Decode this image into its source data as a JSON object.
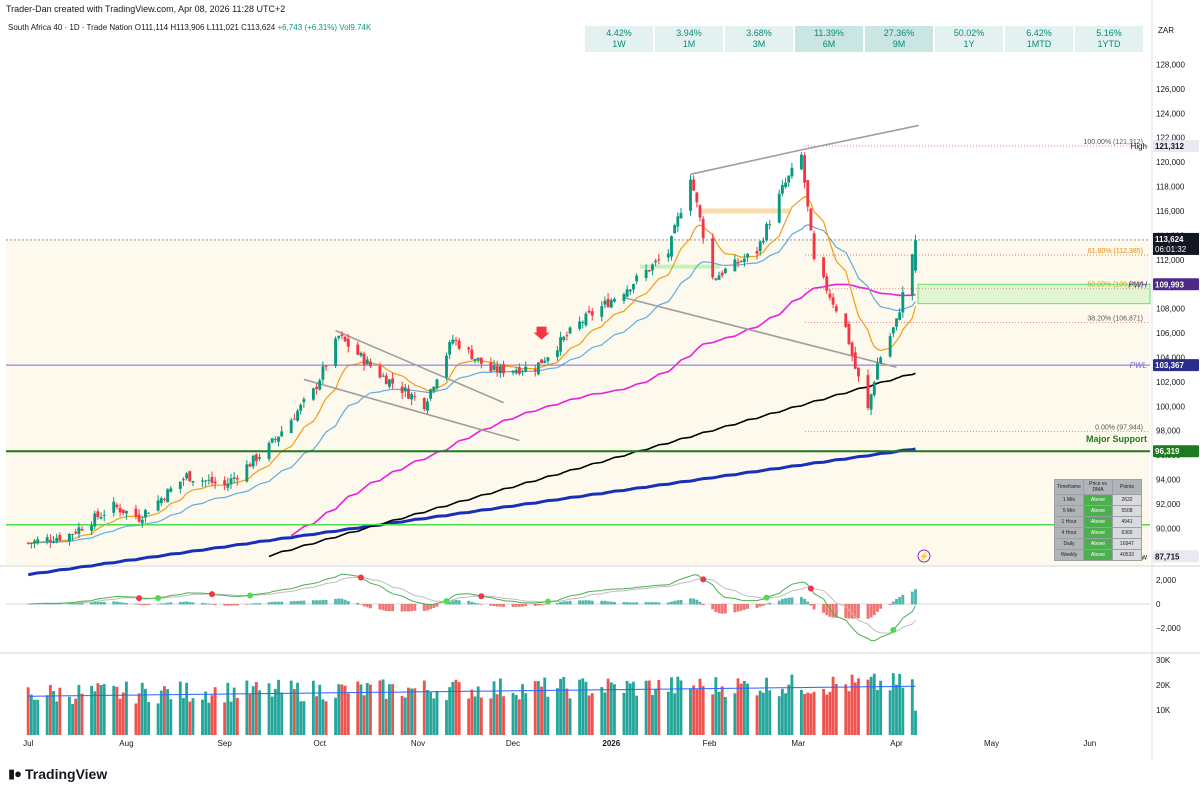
{
  "header": {
    "credit": "Trader-Dan created with TradingView.com, Apr 08, 2026 11:28 UTC+2",
    "symbol": "South Africa 40 · 1D · Trade Nation",
    "open": "O111,114",
    "high": "H113,906",
    "low": "L111,021",
    "close": "C113,624",
    "change": "+6,743 (+6.31%)",
    "volume": "Vol9.74K"
  },
  "performance": [
    {
      "pct": "4.42%",
      "period": "1W"
    },
    {
      "pct": "3.94%",
      "period": "1M"
    },
    {
      "pct": "3.68%",
      "period": "3M"
    },
    {
      "pct": "11.39%",
      "period": "6M"
    },
    {
      "pct": "27.36%",
      "period": "9M"
    },
    {
      "pct": "50.02%",
      "period": "1Y"
    },
    {
      "pct": "6.42%",
      "period": "1MTD"
    },
    {
      "pct": "5.16%",
      "period": "1YTD"
    }
  ],
  "branding": {
    "logo_text": "TradingView"
  },
  "colors": {
    "up": "#089981",
    "down": "#f23645",
    "ema_orange": "#f39c12",
    "ema_blue": "#5dade2",
    "ma_magenta": "#e91ee3",
    "ma_black": "#000000",
    "ma_navy": "#1a2fb8",
    "support_green": "#1e7a1e",
    "bright_green": "#4cdd4c",
    "fib": "#e56b6b",
    "pwl": "#7b68ee"
  },
  "dma_table": {
    "headers": [
      "Timeframe",
      "Price vs DMA",
      "Points"
    ],
    "rows": [
      [
        "1 Min",
        "Above",
        "2632"
      ],
      [
        "5 Min",
        "Above",
        "5508"
      ],
      [
        "1 Hour",
        "Above",
        "4941"
      ],
      [
        "4 Hour",
        "Above",
        "6365"
      ],
      [
        "Daily",
        "Above",
        "16947"
      ],
      [
        "Weekly",
        "Above",
        "40533"
      ]
    ]
  },
  "chart_data": [
    {
      "type": "candlestick",
      "currency": "ZAR",
      "ylim": [
        87000,
        130000
      ],
      "y_ticks": [
        90000,
        92000,
        94000,
        96000,
        98000,
        100000,
        102000,
        104000,
        106000,
        108000,
        110000,
        112000,
        114000,
        116000,
        118000,
        120000,
        122000,
        124000,
        126000,
        128000
      ],
      "y_tick_labels": [
        "90,000",
        "92,000",
        "94,000",
        "96,000",
        "98,000",
        "100,000",
        "102,000",
        "104,000",
        "106,000",
        "108,000",
        "110,000",
        "112,000",
        "114,000",
        "116,000",
        "118,000",
        "120,000",
        "122,000",
        "124,000",
        "126,000",
        "128,000"
      ],
      "x_labels": [
        "Jul",
        "Aug",
        "Sep",
        "Oct",
        "Nov",
        "Dec",
        "2026",
        "Feb",
        "Mar",
        "Apr",
        "May",
        "Jun"
      ],
      "last_price": "113,624",
      "countdown": "06:01:32",
      "price_labels": [
        {
          "text": "High",
          "value": "121,312",
          "price": 121312
        },
        {
          "text": "PWH",
          "value": "109,993",
          "price": 109993
        },
        {
          "text": "PWL",
          "value": "103,367",
          "price": 103367
        },
        {
          "text": "Major Support",
          "value": "96,319",
          "price": 96319
        },
        {
          "text": "Low",
          "value": "87,715",
          "price": 87715
        }
      ],
      "fib_levels": [
        {
          "label": "100.00% (121,312)",
          "price": 121312
        },
        {
          "label": "61.80% (112,385)",
          "price": 112385
        },
        {
          "label": "50.00% (109,628)",
          "price": 109628
        },
        {
          "label": "38.20% (106,871)",
          "price": 106871
        },
        {
          "label": "0.00% (97,944)",
          "price": 97944
        }
      ],
      "close_path": [
        {
          "date": "2025-07-01",
          "close": 88800
        },
        {
          "date": "2025-07-14",
          "close": 89500
        },
        {
          "date": "2025-07-28",
          "close": 91800
        },
        {
          "date": "2025-08-05",
          "close": 90900
        },
        {
          "date": "2025-08-20",
          "close": 94300
        },
        {
          "date": "2025-09-01",
          "close": 93500
        },
        {
          "date": "2025-09-15",
          "close": 96700
        },
        {
          "date": "2025-09-29",
          "close": 101200
        },
        {
          "date": "2025-10-07",
          "close": 105700
        },
        {
          "date": "2025-10-20",
          "close": 102600
        },
        {
          "date": "2025-11-03",
          "close": 100200
        },
        {
          "date": "2025-11-12",
          "close": 105500
        },
        {
          "date": "2025-11-24",
          "close": 102900
        },
        {
          "date": "2025-12-08",
          "close": 103200
        },
        {
          "date": "2025-12-22",
          "close": 106800
        },
        {
          "date": "2026-01-05",
          "close": 109500
        },
        {
          "date": "2026-01-19",
          "close": 112600
        },
        {
          "date": "2026-01-26",
          "close": 118900
        },
        {
          "date": "2026-02-02",
          "close": 110500
        },
        {
          "date": "2026-02-16",
          "close": 112700
        },
        {
          "date": "2026-02-24",
          "close": 117800
        },
        {
          "date": "2026-03-02",
          "close": 120500
        },
        {
          "date": "2026-03-06",
          "close": 111800
        },
        {
          "date": "2026-03-16",
          "close": 106400
        },
        {
          "date": "2026-03-19",
          "close": 103100
        },
        {
          "date": "2026-03-23",
          "close": 99700
        },
        {
          "date": "2026-03-26",
          "close": 103500
        },
        {
          "date": "2026-04-01",
          "close": 106900
        },
        {
          "date": "2026-04-07",
          "close": 113624
        }
      ]
    },
    {
      "type": "line",
      "title": "",
      "ylim": [
        -4000,
        3000
      ],
      "y_ticks": [
        2000,
        0,
        -2000
      ],
      "y_tick_labels": [
        "2,000",
        "0",
        "−2,000"
      ]
    },
    {
      "type": "bar",
      "title": "",
      "y_ticks": [
        10000,
        20000,
        30000
      ],
      "y_tick_labels": [
        "10K",
        "20K",
        "30K"
      ],
      "last_volume": 9740
    }
  ]
}
